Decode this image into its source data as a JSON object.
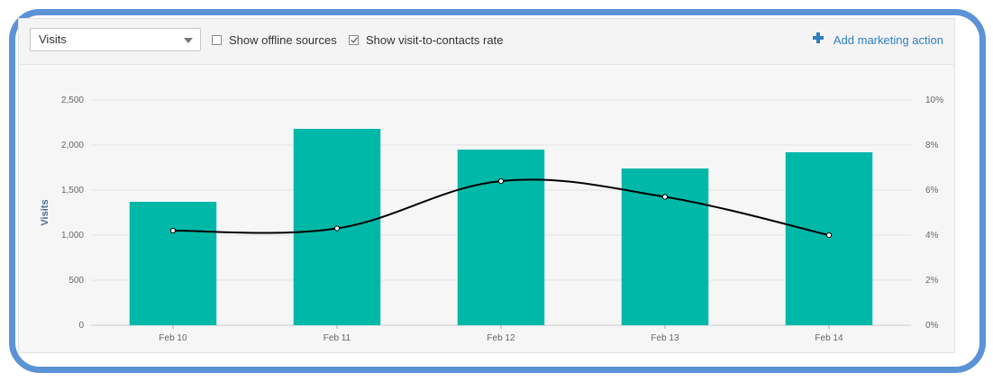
{
  "toolbar": {
    "metric_select": "Visits",
    "offline_sources_label": "Show offline sources",
    "offline_sources_checked": false,
    "visit_rate_label": "Show visit-to-contacts rate",
    "visit_rate_checked": true,
    "add_action_label": "Add marketing action"
  },
  "colors": {
    "bar": "#00b8a8",
    "line": "#000000",
    "frame": "#5b93d6",
    "link": "#2f7fc2"
  },
  "chart_data": {
    "type": "bar",
    "categories": [
      "Feb 10",
      "Feb 11",
      "Feb 12",
      "Feb 13",
      "Feb 14"
    ],
    "series": [
      {
        "name": "Visits",
        "type": "bar",
        "axis": "left",
        "values": [
          1370,
          2180,
          1950,
          1740,
          1920
        ]
      },
      {
        "type": "line",
        "axis": "right",
        "values": [
          4.2,
          4.3,
          6.4,
          5.7,
          4.0
        ]
      }
    ],
    "ylabel": "Visits",
    "ylim": [
      0,
      2500
    ],
    "yticks": [
      "0",
      "500",
      "1,000",
      "1,500",
      "2,000",
      "2,500"
    ],
    "y2lim": [
      0,
      10
    ],
    "y2ticks": [
      "0%",
      "2%",
      "4%",
      "6%",
      "8%",
      "10%"
    ],
    "grid": true,
    "legend": "none"
  }
}
